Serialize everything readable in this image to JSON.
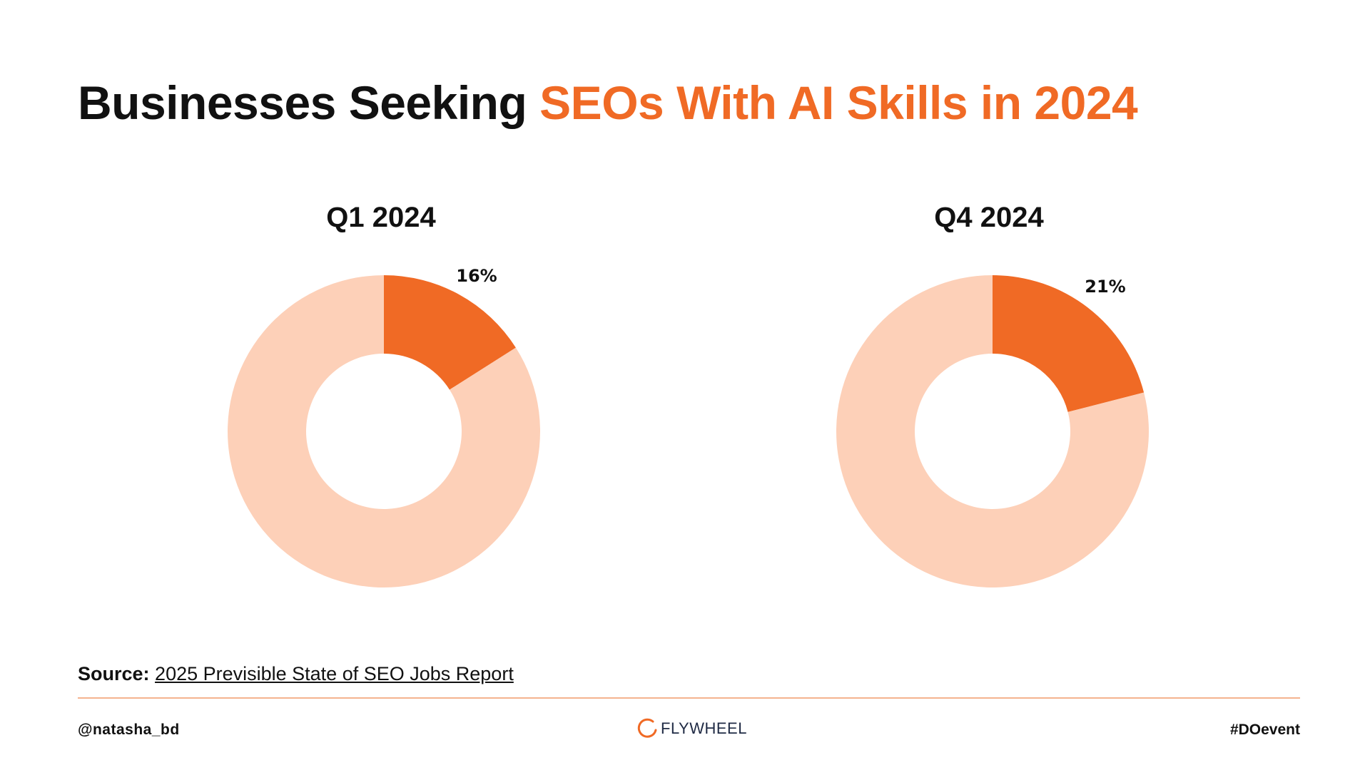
{
  "title": {
    "main": "Businesses Seeking",
    "accent": "SEOs With AI Skills in 2024"
  },
  "colors": {
    "accent": "#F06A25",
    "remainder": "#FDD0B8",
    "rule": "#F4B38F"
  },
  "chart_data": [
    {
      "type": "pie",
      "title": "Q1 2024",
      "slices": [
        {
          "value": 16,
          "label": "16%",
          "color": "#F06A25"
        },
        {
          "value": 84,
          "label": "",
          "color": "#FDD0B8"
        }
      ]
    },
    {
      "type": "pie",
      "title": "Q4 2024",
      "slices": [
        {
          "value": 21,
          "label": "21%",
          "color": "#F06A25"
        },
        {
          "value": 79,
          "label": "",
          "color": "#FDD0B8"
        }
      ]
    }
  ],
  "source": {
    "label": "Source:",
    "link_text": "2025 Previsible State of SEO Jobs Report"
  },
  "footer": {
    "handle": "@natasha_bd",
    "logo_text": "FLYWHEEL",
    "logo_icon": "flywheel-ring-icon",
    "hashtag": "#DOevent"
  }
}
